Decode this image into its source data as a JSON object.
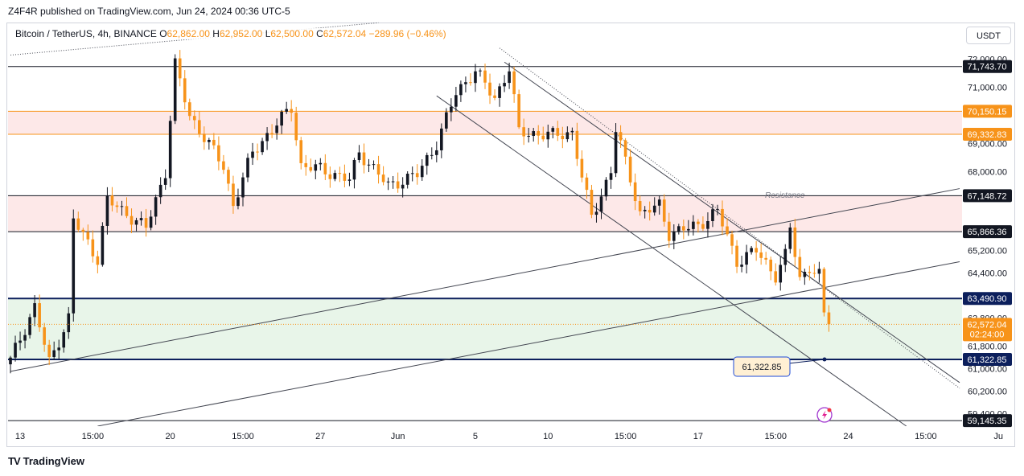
{
  "publisher_line": "Z4F4R published on TradingView.com, Jun 24, 2024 00:36 UTC-5",
  "legend": {
    "symbol": "Bitcoin / TetherUS, 4h, BINANCE",
    "open_label": "O",
    "open": "62,862.00",
    "high_label": "H",
    "high": "62,952.00",
    "low_label": "L",
    "low": "62,500.00",
    "close_label": "C",
    "close": "62,572.04",
    "change": "−289.96 (−0.46%)"
  },
  "currency_button": "USDT",
  "brand": "TradingView",
  "brand_mark": "TV",
  "colors": {
    "up": "#131722",
    "down": "#f7931a",
    "resistance_zone": "#fde8e8",
    "support_zone": "#e8f5e9",
    "orange_level": "#f7931a",
    "navy_level": "#0c1f5c",
    "trend_line": "#434651"
  },
  "chart_data": {
    "type": "candlestick",
    "title": "Bitcoin / TetherUS, 4h, BINANCE",
    "ylim": [
      58950,
      72450
    ],
    "price_axis_ticks": [
      72000,
      71000,
      69000,
      68000,
      65200,
      64400,
      62800,
      61800,
      61000,
      60200,
      59400
    ],
    "price_axis_tick_labels": [
      "72,000.00",
      "71,000.00",
      "69,000.00",
      "68,000.00",
      "65,200.00",
      "64,400.00",
      "62,800.00",
      "61,800.00",
      "61,000.00",
      "60,200.00",
      "59,400.00"
    ],
    "time_axis_labels": [
      "13",
      "15:00",
      "20",
      "15:00",
      "27",
      "Jun",
      "5",
      "10",
      "15:00",
      "17",
      "15:00",
      "24",
      "15:00",
      "Ju"
    ],
    "bar_count": 197,
    "last_visible_bar_index": 169,
    "last_price": 62572.04,
    "last_price_countdown": "02:24:00",
    "key_points": [
      {
        "i": 0,
        "price": 61300
      },
      {
        "i": 5,
        "price": 63200
      },
      {
        "i": 8,
        "price": 61200
      },
      {
        "i": 12,
        "price": 62800
      },
      {
        "i": 13,
        "price": 66300
      },
      {
        "i": 18,
        "price": 64900
      },
      {
        "i": 20,
        "price": 67000
      },
      {
        "i": 28,
        "price": 66000
      },
      {
        "i": 32,
        "price": 68000
      },
      {
        "i": 34,
        "price": 71800
      },
      {
        "i": 37,
        "price": 70000
      },
      {
        "i": 44,
        "price": 68200
      },
      {
        "i": 46,
        "price": 66800
      },
      {
        "i": 50,
        "price": 68700
      },
      {
        "i": 58,
        "price": 70300
      },
      {
        "i": 60,
        "price": 68200
      },
      {
        "i": 64,
        "price": 68100
      },
      {
        "i": 70,
        "price": 67700
      },
      {
        "i": 72,
        "price": 68700
      },
      {
        "i": 78,
        "price": 67500
      },
      {
        "i": 84,
        "price": 67900
      },
      {
        "i": 88,
        "price": 69000
      },
      {
        "i": 92,
        "price": 70800
      },
      {
        "i": 96,
        "price": 71600
      },
      {
        "i": 100,
        "price": 70600
      },
      {
        "i": 103,
        "price": 71700
      },
      {
        "i": 105,
        "price": 69400
      },
      {
        "i": 112,
        "price": 69300
      },
      {
        "i": 116,
        "price": 69400
      },
      {
        "i": 118,
        "price": 67800
      },
      {
        "i": 120,
        "price": 66400
      },
      {
        "i": 124,
        "price": 68000
      },
      {
        "i": 125,
        "price": 69500
      },
      {
        "i": 128,
        "price": 67800
      },
      {
        "i": 130,
        "price": 66500
      },
      {
        "i": 134,
        "price": 66800
      },
      {
        "i": 136,
        "price": 65800
      },
      {
        "i": 142,
        "price": 66100
      },
      {
        "i": 146,
        "price": 66600
      },
      {
        "i": 150,
        "price": 64800
      },
      {
        "i": 154,
        "price": 65200
      },
      {
        "i": 158,
        "price": 64300
      },
      {
        "i": 160,
        "price": 65000
      },
      {
        "i": 161,
        "price": 66000
      },
      {
        "i": 163,
        "price": 64200
      },
      {
        "i": 165,
        "price": 64600
      },
      {
        "i": 167,
        "price": 64300
      },
      {
        "i": 168,
        "price": 62862
      },
      {
        "i": 169,
        "price": 62572
      }
    ],
    "zones": [
      {
        "name": "upper-resistance",
        "low": 69332.83,
        "high": 70150.15
      },
      {
        "name": "resistance",
        "label": "Resistance",
        "low": 65866.36,
        "high": 67148.72
      },
      {
        "name": "support",
        "low": 61322.85,
        "high": 63490.9
      }
    ],
    "levels": [
      {
        "price": 71743.7,
        "label": "71,743.70",
        "style": "dark"
      },
      {
        "price": 70150.15,
        "label": "70,150.15",
        "style": "orange"
      },
      {
        "price": 69332.83,
        "label": "69,332.83",
        "style": "orange"
      },
      {
        "price": 67148.72,
        "label": "67,148.72",
        "style": "dark"
      },
      {
        "price": 65866.36,
        "label": "65,866.36",
        "style": "dark"
      },
      {
        "price": 63490.9,
        "label": "63,490.90",
        "style": "navy"
      },
      {
        "price": 61322.85,
        "label": "61,322.85",
        "style": "navy"
      },
      {
        "price": 59145.35,
        "label": "59,145.35",
        "style": "dark"
      }
    ],
    "last_price_label": "62,572.04",
    "annotation": {
      "label": "61,322.85",
      "price": 61322.85
    },
    "trend_lines": [
      {
        "name": "upper-dotted-trend",
        "style": "dotted",
        "from": {
          "i": 0,
          "price": 72150
        },
        "to": {
          "i": 76,
          "price": 73300
        }
      },
      {
        "name": "rising-channel-upper",
        "style": "solid",
        "from": {
          "i": 0,
          "price": 60900
        },
        "to": {
          "i": 196,
          "price": 67400
        }
      },
      {
        "name": "rising-channel-lower",
        "style": "solid",
        "from": {
          "i": 18,
          "price": 58950
        },
        "to": {
          "i": 196,
          "price": 64800
        }
      },
      {
        "name": "falling-channel-upper",
        "style": "dotted",
        "from": {
          "i": 101,
          "price": 72400
        },
        "to": {
          "i": 196,
          "price": 60300
        }
      },
      {
        "name": "falling-channel-middle",
        "style": "solid",
        "from": {
          "i": 102,
          "price": 71900
        },
        "to": {
          "i": 196,
          "price": 60500
        }
      },
      {
        "name": "falling-channel-lower",
        "style": "solid",
        "from": {
          "i": 88,
          "price": 70700
        },
        "to": {
          "i": 185,
          "price": 58950
        }
      }
    ],
    "grid": false
  }
}
